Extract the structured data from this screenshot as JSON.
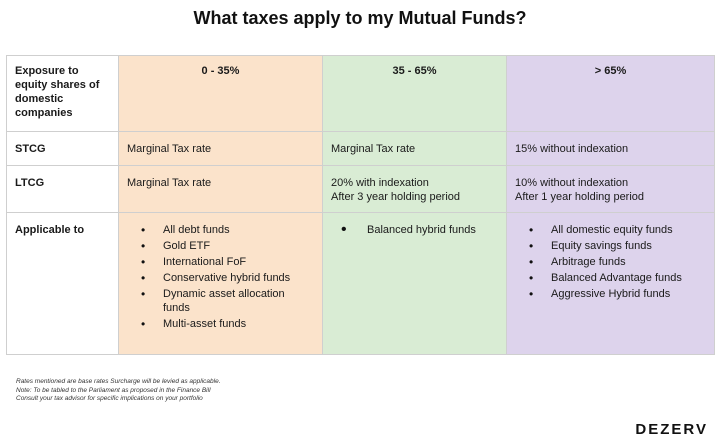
{
  "title": "What taxes apply to my Mutual Funds?",
  "colors": {
    "col1": "#fbe3cb",
    "col2": "#d9ecd4",
    "col3": "#ddd3ec"
  },
  "table": {
    "header": {
      "label": "Exposure to equity shares of domestic companies",
      "columns": [
        "0 - 35%",
        "35 - 65%",
        "> 65%"
      ]
    },
    "stcg": {
      "label": "STCG",
      "values": [
        "Marginal Tax rate",
        "Marginal Tax rate",
        "15% without indexation"
      ]
    },
    "ltcg": {
      "label": "LTCG",
      "values": [
        [
          "Marginal Tax rate"
        ],
        [
          "20% with indexation",
          "After 3 year holding period"
        ],
        [
          "10% without indexation",
          "After 1 year holding period"
        ]
      ]
    },
    "applicable": {
      "label": "Applicable to",
      "col1": [
        "All debt funds",
        "Gold ETF",
        "International FoF",
        "Conservative hybrid funds",
        "Dynamic asset allocation funds",
        "Multi-asset funds"
      ],
      "col2": [
        "Balanced hybrid funds"
      ],
      "col3": [
        "All domestic equity funds",
        "Equity savings funds",
        "Arbitrage funds",
        "Balanced Advantage funds",
        "Aggressive Hybrid funds"
      ]
    }
  },
  "notes": [
    "Rates mentioned are base rates Surcharge will be levied as applicable.",
    "Note: To be tabled to the Parliament as proposed in the Finance Bill",
    "Consult your tax advisor for specific implications on your portfolio"
  ],
  "brand": "DEZERV"
}
